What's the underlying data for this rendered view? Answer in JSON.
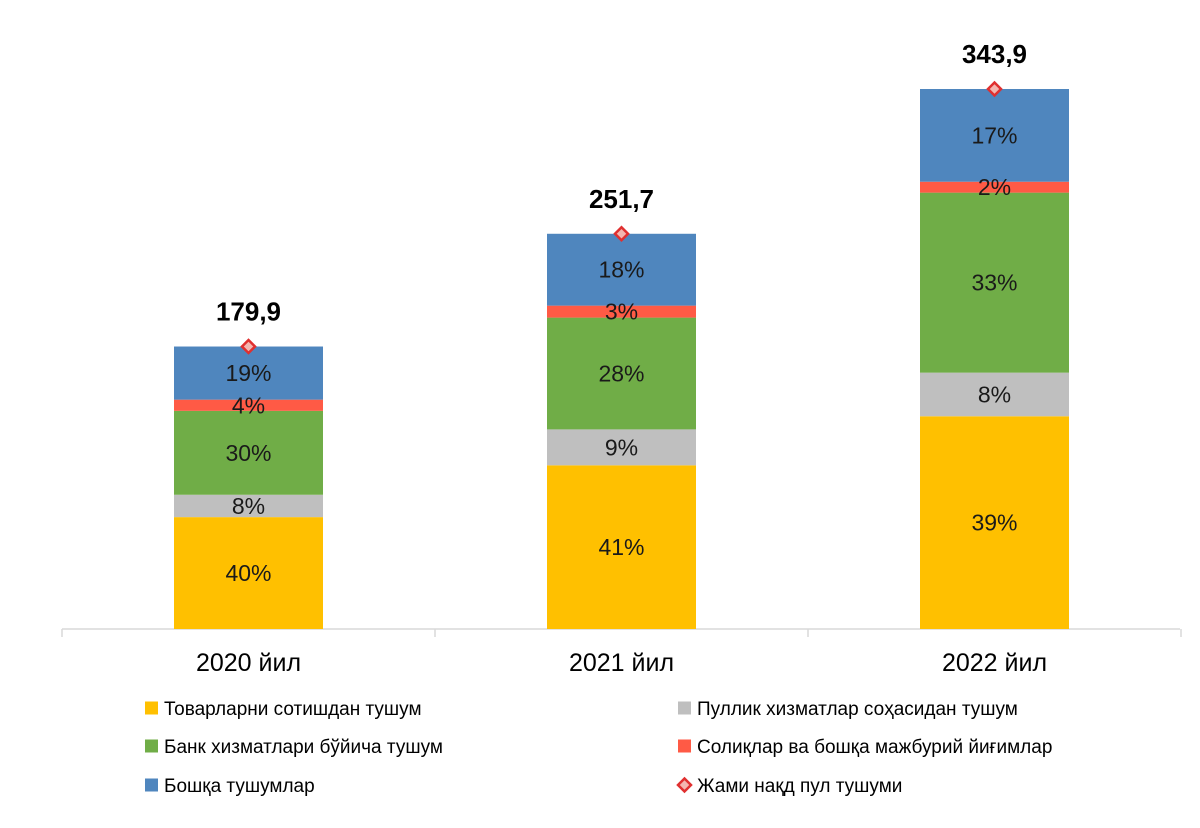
{
  "chart_data": {
    "type": "bar",
    "stacked": true,
    "categories": [
      "2020 йил",
      "2021 йил",
      "2022 йил"
    ],
    "unit": "%",
    "series": [
      {
        "name": "Товарларни сотишдан тушум",
        "values": [
          40,
          41,
          39
        ],
        "color": "#FFC000"
      },
      {
        "name": "Пуллик хизматлар соҳасидан тушум",
        "values": [
          8,
          9,
          8
        ],
        "color": "#BFBFBF"
      },
      {
        "name": "Банк хизматлари бўйича тушум",
        "values": [
          30,
          28,
          33
        ],
        "color": "#70AD47"
      },
      {
        "name": "Солиқлар ва бошқа мажбурий йиғимлар",
        "values": [
          4,
          3,
          2
        ],
        "color": "#FF5A45"
      },
      {
        "name": "Бошқа тушумлар",
        "values": [
          19,
          18,
          17
        ],
        "color": "#4F86BE"
      }
    ],
    "totals": {
      "name": "Жами нақд пул тушуми",
      "values": [
        179.9,
        251.7,
        343.9
      ],
      "labels": [
        "179,9",
        "251,7",
        "343,9"
      ],
      "marker_color": "#E03030"
    },
    "ylim": [
      0,
      350
    ],
    "grid": false,
    "legend_position": "bottom"
  }
}
